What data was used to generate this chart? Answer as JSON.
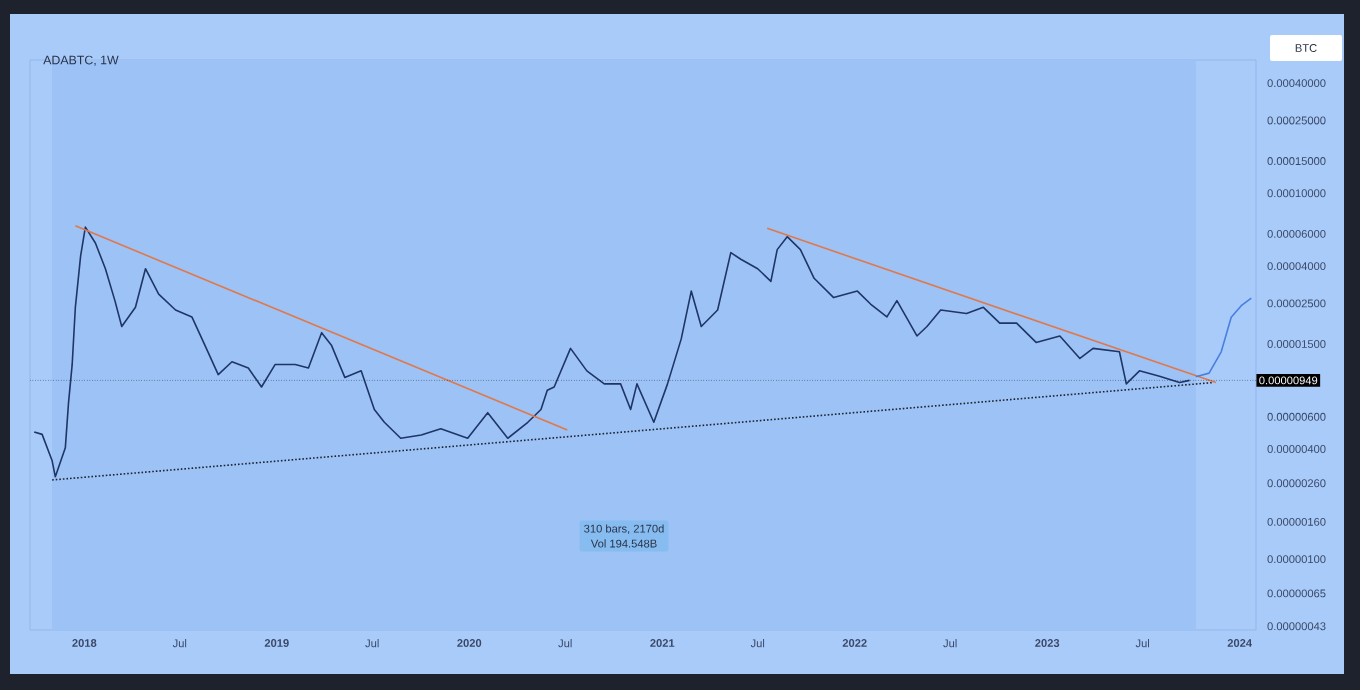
{
  "chart_data": {
    "type": "line",
    "title": "ADABTC, 1W",
    "ylabel": "BTC",
    "log": "y",
    "xlim": [
      "2017-09-20",
      "2024-02-01"
    ],
    "xticks": [
      {
        "value": "2018-01-01",
        "label": "2018"
      },
      {
        "value": "2018-07-01",
        "label": "Jul"
      },
      {
        "value": "2019-01-01",
        "label": "2019"
      },
      {
        "value": "2019-07-01",
        "label": "Jul"
      },
      {
        "value": "2020-01-01",
        "label": "2020"
      },
      {
        "value": "2020-07-01",
        "label": "Jul"
      },
      {
        "value": "2021-01-01",
        "label": "2021"
      },
      {
        "value": "2021-07-01",
        "label": "Jul"
      },
      {
        "value": "2022-01-01",
        "label": "2022"
      },
      {
        "value": "2022-07-01",
        "label": "Jul"
      },
      {
        "value": "2023-01-01",
        "label": "2023"
      },
      {
        "value": "2023-07-01",
        "label": "Jul"
      },
      {
        "value": "2024-01-01",
        "label": "2024"
      }
    ],
    "ylim": [
      4.1e-07,
      0.000535
    ],
    "yticks": [
      {
        "value": 0.0004,
        "label": "0.00040000"
      },
      {
        "value": 0.00025,
        "label": "0.00025000"
      },
      {
        "value": 0.00015,
        "label": "0.00015000"
      },
      {
        "value": 0.0001,
        "label": "0.00010000"
      },
      {
        "value": 6e-05,
        "label": "0.00006000"
      },
      {
        "value": 4e-05,
        "label": "0.00004000"
      },
      {
        "value": 2.5e-05,
        "label": "0.00002500"
      },
      {
        "value": 1.5e-05,
        "label": "0.00001500"
      },
      {
        "value": 6e-06,
        "label": "0.00000600"
      },
      {
        "value": 4e-06,
        "label": "0.00000400"
      },
      {
        "value": 2.6e-06,
        "label": "0.00000260"
      },
      {
        "value": 1.6e-06,
        "label": "0.00000160"
      },
      {
        "value": 1e-06,
        "label": "0.00000100"
      },
      {
        "value": 6.5e-07,
        "label": "0.00000065"
      },
      {
        "value": 4.3e-07,
        "label": "0.00000043"
      }
    ],
    "series": [
      {
        "color": "#1f3566",
        "line_style": "solid",
        "x": [
          "2017-09-28",
          "2017-10-13",
          "2017-11-01",
          "2017-11-07",
          "2017-11-26",
          "2017-12-02",
          "2017-12-09",
          "2017-12-15",
          "2017-12-25",
          "2018-01-03",
          "2018-01-22",
          "2018-02-10",
          "2018-02-28",
          "2018-03-13",
          "2018-04-08",
          "2018-04-27",
          "2018-05-22",
          "2018-06-23",
          "2018-07-24",
          "2018-08-18",
          "2018-09-12",
          "2018-10-08",
          "2018-11-08",
          "2018-12-03",
          "2018-12-29",
          "2019-02-05",
          "2019-03-02",
          "2019-03-27",
          "2019-04-15",
          "2019-05-10",
          "2019-06-10",
          "2019-07-05",
          "2019-07-24",
          "2019-08-24",
          "2019-10-02",
          "2019-11-08",
          "2019-12-29",
          "2020-02-05",
          "2020-03-14",
          "2020-04-21",
          "2020-05-16",
          "2020-05-28",
          "2020-06-10",
          "2020-07-11",
          "2020-08-11",
          "2020-09-13",
          "2020-10-14",
          "2020-11-02",
          "2020-11-14",
          "2020-12-16",
          "2021-01-11",
          "2021-02-06",
          "2021-02-25",
          "2021-03-16",
          "2021-04-16",
          "2021-05-11",
          "2021-05-30",
          "2021-07-01",
          "2021-07-26",
          "2021-08-07",
          "2021-08-26",
          "2021-09-20",
          "2021-10-16",
          "2021-11-22",
          "2022-01-06",
          "2022-01-31",
          "2022-03-03",
          "2022-03-22",
          "2022-04-29",
          "2022-05-18",
          "2022-06-13",
          "2022-08-01",
          "2022-09-02",
          "2022-10-03",
          "2022-11-04",
          "2022-12-11",
          "2023-01-25",
          "2023-03-04",
          "2023-03-29",
          "2023-05-18",
          "2023-05-31",
          "2023-06-25",
          "2023-08-02",
          "2023-09-09",
          "2023-09-28"
        ],
        "values": [
          4.96e-06,
          4.81e-06,
          3.45e-06,
          2.82e-06,
          4.06e-06,
          7.13e-06,
          1.16e-05,
          2.38e-05,
          4.55e-05,
          6.53e-05,
          5.35e-05,
          3.87e-05,
          2.59e-05,
          1.87e-05,
          2.38e-05,
          3.87e-05,
          2.81e-05,
          2.3e-05,
          2.11e-05,
          1.47e-05,
          1.02e-05,
          1.2e-05,
          1.11e-05,
          8.73e-06,
          1.16e-05,
          1.16e-05,
          1.11e-05,
          1.73e-05,
          1.47e-05,
          9.85e-06,
          1.07e-05,
          6.58e-06,
          5.6e-06,
          4.58e-06,
          4.77e-06,
          5.16e-06,
          4.58e-06,
          6.32e-06,
          4.58e-06,
          5.6e-06,
          6.58e-06,
          8.38e-06,
          8.73e-06,
          1.42e-05,
          1.07e-05,
          9.08e-06,
          9.08e-06,
          6.58e-06,
          9.08e-06,
          5.6e-06,
          9.08e-06,
          1.6e-05,
          2.92e-05,
          1.87e-05,
          2.3e-05,
          4.74e-05,
          4.36e-05,
          3.87e-05,
          3.3e-05,
          4.92e-05,
          5.79e-05,
          4.92e-05,
          3.43e-05,
          2.69e-05,
          2.92e-05,
          2.48e-05,
          2.11e-05,
          2.59e-05,
          1.66e-05,
          1.87e-05,
          2.3e-05,
          2.2e-05,
          2.38e-05,
          1.95e-05,
          1.95e-05,
          1.53e-05,
          1.66e-05,
          1.25e-05,
          1.42e-05,
          1.36e-05,
          9.08e-06,
          1.07e-05,
          1e-05,
          9.23e-06,
          9.49e-06
        ]
      },
      {
        "color": "#e0784a",
        "line_style": "solid",
        "x": [
          "2017-12-15",
          "2020-07-05"
        ],
        "values": [
          6.64e-05,
          5.08e-06
        ]
      },
      {
        "color": "#e0784a",
        "line_style": "solid",
        "x": [
          "2021-07-19",
          "2023-11-17"
        ],
        "values": [
          6.43e-05,
          9.23e-06
        ]
      },
      {
        "color": "#1e222d",
        "line_style": "dotted",
        "x": [
          "2017-11-01",
          "2023-11-11"
        ],
        "values": [
          2.71e-06,
          9.23e-06
        ]
      },
      {
        "color": "#4a7fe0",
        "line_style": "solid",
        "x": [
          "2023-10-10",
          "2023-11-04",
          "2023-11-27",
          "2023-12-16",
          "2024-01-04",
          "2024-01-23"
        ],
        "values": [
          9.93e-06,
          1.04e-05,
          1.36e-05,
          2.1e-05,
          2.43e-05,
          2.67e-05
        ]
      }
    ],
    "ref_lines": [
      {
        "axis": "y",
        "value": 9.49e-06,
        "label": "0.00000949",
        "color": "#000000",
        "line_style": "dotted"
      }
    ],
    "bands": [
      {
        "axis": "x",
        "from": "2017-11-01",
        "to": "2023-10-10",
        "color": "#9cc2f6"
      }
    ],
    "annotations": [
      "310 bars, 2170d",
      "Vol 194.548B"
    ]
  }
}
